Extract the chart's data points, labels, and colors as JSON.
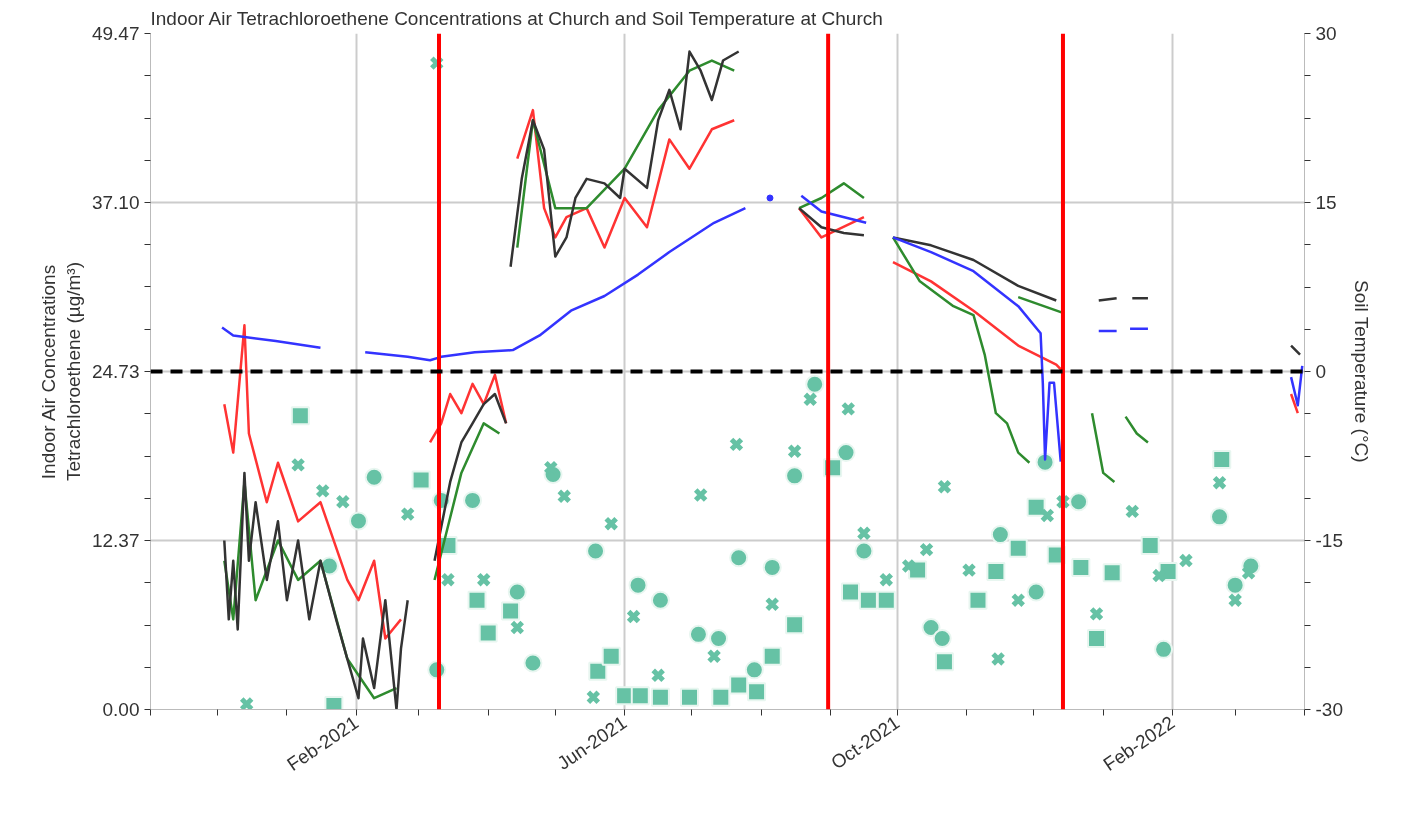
{
  "chart_data": {
    "type": "line",
    "title": "Indoor Air Tetrachloroethene Concentrations at Church and Soil Temperature at Church",
    "ylabel": "Indoor Air Concentrations\nTetrachloroethene (µg/m³)",
    "y2label": "Soil Temperature (°C)",
    "xlim": [
      "2020-11-01",
      "2022-04-01"
    ],
    "xticks": [
      {
        "value": "2020-11-01",
        "label": null
      },
      {
        "value": "2020-12-01",
        "label": null
      },
      {
        "value": "2021-01-01",
        "label": null
      },
      {
        "value": "2021-02-01",
        "label": "Feb-2021"
      },
      {
        "value": "2021-03-01",
        "label": null
      },
      {
        "value": "2021-04-01",
        "label": null
      },
      {
        "value": "2021-05-01",
        "label": null
      },
      {
        "value": "2021-06-01",
        "label": "Jun-2021"
      },
      {
        "value": "2021-07-01",
        "label": null
      },
      {
        "value": "2021-08-01",
        "label": null
      },
      {
        "value": "2021-09-01",
        "label": null
      },
      {
        "value": "2021-10-01",
        "label": "Oct-2021"
      },
      {
        "value": "2021-11-01",
        "label": null
      },
      {
        "value": "2021-12-01",
        "label": null
      },
      {
        "value": "2022-01-01",
        "label": null
      },
      {
        "value": "2022-02-01",
        "label": "Feb-2022"
      },
      {
        "value": "2022-03-01",
        "label": null
      },
      {
        "value": "2022-04-01",
        "label": null
      }
    ],
    "ylim": [
      0,
      49.47
    ],
    "yticks": [
      {
        "value": 0,
        "label": "0.00"
      },
      {
        "value": 3.09,
        "label": null
      },
      {
        "value": 6.18,
        "label": null
      },
      {
        "value": 9.28,
        "label": null
      },
      {
        "value": 12.37,
        "label": "12.37"
      },
      {
        "value": 15.46,
        "label": null
      },
      {
        "value": 18.55,
        "label": null
      },
      {
        "value": 21.64,
        "label": null
      },
      {
        "value": 24.73,
        "label": "24.73"
      },
      {
        "value": 27.83,
        "label": null
      },
      {
        "value": 30.92,
        "label": null
      },
      {
        "value": 34.01,
        "label": null
      },
      {
        "value": 37.1,
        "label": "37.10"
      },
      {
        "value": 40.19,
        "label": null
      },
      {
        "value": 43.28,
        "label": null
      },
      {
        "value": 46.38,
        "label": null
      },
      {
        "value": 49.47,
        "label": "49.47"
      }
    ],
    "y2lim": [
      -30,
      30
    ],
    "y2ticks": [
      -30,
      {
        "value": -26.25,
        "label": null
      },
      {
        "value": -22.5,
        "label": null
      },
      {
        "value": -18.75,
        "label": null
      },
      -15,
      {
        "value": -11.25,
        "label": null
      },
      {
        "value": -7.5,
        "label": null
      },
      {
        "value": -3.75,
        "label": null
      },
      0,
      {
        "value": 3.75,
        "label": null
      },
      {
        "value": 7.5,
        "label": null
      },
      {
        "value": 11.25,
        "label": null
      },
      15,
      {
        "value": 18.75,
        "label": null
      },
      {
        "value": 22.5,
        "label": null
      },
      {
        "value": 26.25,
        "label": null
      },
      30
    ],
    "grid": true,
    "ref_lines": [
      {
        "axis": "x",
        "value": "2021-03-10",
        "color": "#ff0000"
      },
      {
        "axis": "x",
        "value": "2021-08-31",
        "color": "#ff0000"
      },
      {
        "axis": "x",
        "value": "2021-12-14",
        "color": "#ff0000"
      },
      {
        "axis": "y2",
        "value": 0,
        "color": "#000000",
        "line_style": "dashed"
      }
    ],
    "series": [
      {
        "type": "scatter",
        "marker": "circle",
        "color": "#66c2a5",
        "x": [
          "2021-01-20",
          "2021-02-02",
          "2021-02-09",
          "2021-03-09",
          "2021-03-11",
          "2021-03-25",
          "2021-04-14",
          "2021-04-21",
          "2021-04-30",
          "2021-05-19",
          "2021-06-07",
          "2021-06-17",
          "2021-07-04",
          "2021-07-13",
          "2021-07-22",
          "2021-07-29",
          "2021-08-06",
          "2021-08-16",
          "2021-08-25",
          "2021-09-08",
          "2021-09-16",
          "2021-10-16",
          "2021-10-21",
          "2021-11-16",
          "2021-12-02",
          "2021-12-06",
          "2021-12-21",
          "2022-01-28",
          "2022-02-22",
          "2022-03-01",
          "2022-03-08"
        ],
        "values": [
          10.5,
          13.8,
          17.0,
          2.9,
          15.3,
          15.3,
          8.6,
          3.4,
          17.2,
          11.6,
          9.1,
          8.0,
          5.5,
          5.2,
          11.1,
          2.9,
          10.4,
          17.1,
          23.8,
          18.8,
          11.6,
          6.0,
          5.2,
          12.8,
          8.6,
          18.1,
          15.2,
          4.4,
          14.1,
          9.1,
          10.5
        ]
      },
      {
        "type": "scatter",
        "marker": "square",
        "color": "#66c2a5",
        "x": [
          "2021-01-07",
          "2021-01-22",
          "2021-03-02",
          "2021-03-14",
          "2021-03-27",
          "2021-04-01",
          "2021-04-11",
          "2021-05-20",
          "2021-05-26",
          "2021-06-01",
          "2021-06-08",
          "2021-06-17",
          "2021-06-30",
          "2021-07-14",
          "2021-07-22",
          "2021-07-30",
          "2021-08-06",
          "2021-08-16",
          "2021-09-02",
          "2021-09-10",
          "2021-09-18",
          "2021-09-26",
          "2021-10-10",
          "2021-10-22",
          "2021-11-06",
          "2021-11-14",
          "2021-11-24",
          "2021-12-02",
          "2021-12-11",
          "2021-12-22",
          "2021-12-29",
          "2022-01-05",
          "2022-01-22",
          "2022-01-30",
          "2022-02-23"
        ],
        "values": [
          21.5,
          0.3,
          16.8,
          12.0,
          8.0,
          5.6,
          7.2,
          2.8,
          3.9,
          1.0,
          1.0,
          0.9,
          0.9,
          0.9,
          1.8,
          1.3,
          3.9,
          6.2,
          17.7,
          8.6,
          8.0,
          8.0,
          10.2,
          3.5,
          8.0,
          10.1,
          11.8,
          14.8,
          11.3,
          10.4,
          5.2,
          10.0,
          12.0,
          10.1,
          18.3
        ]
      },
      {
        "type": "scatter",
        "marker": "cross",
        "color": "#66c2a5",
        "x": [
          "2020-12-14",
          "2021-01-06",
          "2021-01-17",
          "2021-01-26",
          "2021-02-24",
          "2021-03-09",
          "2021-03-14",
          "2021-03-30",
          "2021-04-14",
          "2021-04-29",
          "2021-05-05",
          "2021-05-18",
          "2021-05-26",
          "2021-06-05",
          "2021-06-16",
          "2021-07-05",
          "2021-07-11",
          "2021-07-21",
          "2021-08-06",
          "2021-08-16",
          "2021-08-23",
          "2021-09-09",
          "2021-09-16",
          "2021-09-26",
          "2021-10-06",
          "2021-10-14",
          "2021-10-22",
          "2021-11-02",
          "2021-11-15",
          "2021-11-24",
          "2021-12-07",
          "2021-12-14",
          "2021-12-29",
          "2022-01-14",
          "2022-01-26",
          "2022-02-07",
          "2022-02-22",
          "2022-03-01",
          "2022-03-07"
        ],
        "values": [
          0.4,
          17.9,
          16.0,
          15.2,
          14.3,
          47.3,
          9.5,
          9.5,
          6.0,
          17.7,
          15.6,
          0.9,
          13.6,
          6.8,
          2.5,
          15.7,
          3.9,
          19.4,
          7.7,
          18.9,
          22.7,
          22.0,
          12.9,
          9.5,
          10.5,
          11.7,
          16.3,
          10.2,
          3.7,
          8.0,
          14.2,
          15.2,
          7.0,
          14.5,
          9.8,
          10.9,
          16.6,
          8.0,
          10.0
        ]
      },
      {
        "axis": "y2",
        "color": "#ff3333",
        "x": [
          "2020-12-04",
          "2020-12-08",
          "2020-12-13",
          "2020-12-15",
          "2020-12-23",
          "2020-12-28",
          "2021-01-06",
          "2021-01-16",
          "2021-01-28",
          "2021-02-02",
          "2021-02-09",
          "2021-02-14",
          "2021-02-21",
          "2021-03-01",
          "2021-03-06",
          "2021-03-11",
          "2021-03-15",
          "2021-03-20",
          "2021-03-25",
          "2021-03-30",
          "2021-04-04",
          "2021-04-09",
          "2021-04-10",
          "2021-04-14",
          "2021-04-21",
          "2021-04-26",
          "2021-05-01",
          "2021-05-06",
          "2021-05-15",
          "2021-05-23",
          "2021-06-01",
          "2021-06-11",
          "2021-06-21",
          "2021-06-30",
          "2021-07-10",
          "2021-07-20",
          "2021-07-30",
          "2021-08-18",
          "2021-08-28",
          "2021-09-16",
          "2021-09-23",
          "2021-09-29",
          "2021-10-16",
          "2021-11-04",
          "2021-11-24",
          "2021-12-11",
          "2021-12-14",
          "2021-12-18",
          "2022-03-26",
          "2022-03-29"
        ],
        "values": [
          -2.9,
          -7.2,
          4.1,
          -5.5,
          -11.6,
          -8.1,
          -13.3,
          -11.6,
          -18.5,
          -20.3,
          -16.8,
          -23.7,
          -22.0,
          null,
          -6.3,
          -4.6,
          -2.0,
          -3.7,
          -1.1,
          -2.9,
          -0.3,
          -4.6,
          null,
          18.9,
          23.2,
          14.5,
          11.9,
          13.7,
          14.5,
          11.0,
          15.4,
          12.8,
          20.6,
          18.0,
          21.5,
          22.3,
          null,
          14.5,
          11.9,
          13.7,
          null,
          9.7,
          8.0,
          5.4,
          2.3,
          0.6,
          0.0,
          null,
          -2.0,
          -3.7
        ]
      },
      {
        "axis": "y2",
        "color": "#2e8b2e",
        "x": [
          "2020-12-04",
          "2020-12-08",
          "2020-12-13",
          "2020-12-18",
          "2020-12-28",
          "2021-01-06",
          "2021-01-16",
          "2021-01-28",
          "2021-02-09",
          "2021-02-19",
          "2021-03-01",
          "2021-03-08",
          "2021-03-20",
          "2021-03-30",
          "2021-04-06",
          "2021-04-10",
          "2021-04-14",
          "2021-04-21",
          "2021-05-01",
          "2021-05-15",
          "2021-06-01",
          "2021-06-16",
          "2021-06-30",
          "2021-07-10",
          "2021-07-20",
          "2021-07-30",
          "2021-08-18",
          "2021-08-28",
          "2021-09-07",
          "2021-09-16",
          "2021-09-23",
          "2021-09-29",
          "2021-10-11",
          "2021-10-26",
          "2021-11-04",
          "2021-11-09",
          "2021-11-14",
          "2021-11-19",
          "2021-11-24",
          "2021-11-29",
          "2021-12-04",
          "2021-12-27",
          "2022-01-01",
          "2022-01-06",
          "2022-01-08",
          "2022-01-11",
          "2022-01-16",
          "2022-01-21"
        ],
        "values": [
          -16.8,
          -22.0,
          -9.8,
          -20.3,
          -15.0,
          -18.5,
          -16.8,
          -25.5,
          -29.0,
          -28.1,
          null,
          -18.5,
          -9.0,
          -4.6,
          -5.5,
          null,
          11.0,
          22.3,
          14.5,
          14.5,
          18.0,
          23.2,
          26.7,
          27.6,
          26.7,
          null,
          14.5,
          15.4,
          16.7,
          15.4,
          null,
          11.9,
          8.0,
          5.8,
          5.0,
          1.5,
          -3.7,
          -4.6,
          -7.2,
          -8.1,
          null,
          -3.7,
          -9.0,
          -9.8,
          null,
          -4.0,
          -5.5,
          -6.3
        ]
      },
      {
        "axis": "y2",
        "color": "#2e8b2e",
        "x": [
          "2021-11-24",
          "2021-12-14"
        ],
        "values": [
          6.6,
          5.2
        ]
      },
      {
        "axis": "y2",
        "color": "#333333",
        "x": [
          "2020-12-04",
          "2020-12-06",
          "2020-12-08",
          "2020-12-10",
          "2020-12-13",
          "2020-12-15",
          "2020-12-18",
          "2020-12-23",
          "2020-12-28",
          "2021-01-01",
          "2021-01-06",
          "2021-01-11",
          "2021-01-16",
          "2021-01-23",
          "2021-01-28",
          "2021-02-02",
          "2021-02-04",
          "2021-02-09",
          "2021-02-14",
          "2021-02-19",
          "2021-02-21",
          "2021-02-24",
          "2021-03-01",
          "2021-03-08",
          "2021-03-15",
          "2021-03-20",
          "2021-03-25",
          "2021-03-30",
          "2021-04-04",
          "2021-04-09",
          "2021-04-10",
          "2021-04-11",
          "2021-04-16",
          "2021-04-21",
          "2021-04-26",
          "2021-05-01",
          "2021-05-06",
          "2021-05-10",
          "2021-05-15",
          "2021-05-23",
          "2021-05-30",
          "2021-06-01",
          "2021-06-11",
          "2021-06-16",
          "2021-06-21",
          "2021-06-26",
          "2021-06-30",
          "2021-07-05",
          "2021-07-10",
          "2021-07-15",
          "2021-07-22",
          "2021-07-30",
          "2021-08-18",
          "2021-08-28",
          "2021-09-07",
          "2021-09-16",
          "2021-09-23",
          "2021-09-29",
          "2021-10-16",
          "2021-11-04",
          "2021-11-24",
          "2021-12-11",
          "2021-12-18",
          "2021-12-30",
          "2022-01-07",
          "2022-01-10",
          "2022-01-14",
          "2022-01-21",
          "2022-02-19",
          "2022-03-26",
          "2022-03-30"
        ],
        "values": [
          -15.0,
          -22.0,
          -16.8,
          -22.9,
          -9.0,
          -16.8,
          -11.6,
          -18.5,
          -13.3,
          -20.3,
          -15.0,
          -22.0,
          -16.8,
          -22.0,
          -25.5,
          -29.0,
          -23.7,
          -28.1,
          -20.3,
          -30,
          -24.6,
          -20.3,
          null,
          -16.8,
          -9.8,
          -6.3,
          -4.6,
          -2.9,
          -2.0,
          -4.6,
          null,
          9.3,
          17.1,
          22.3,
          19.7,
          10.2,
          11.9,
          15.4,
          17.1,
          16.7,
          15.4,
          18.0,
          16.3,
          22.3,
          25.0,
          21.5,
          28.4,
          26.7,
          24.1,
          27.6,
          28.4,
          null,
          14.5,
          12.8,
          12.3,
          12.1,
          null,
          11.9,
          11.2,
          9.9,
          7.6,
          6.3,
          null,
          6.3,
          6.5,
          null,
          6.5,
          6.5,
          null,
          2.3,
          1.5
        ]
      },
      {
        "axis": "y2",
        "color": "#3333ff",
        "x": [
          "2020-12-03",
          "2020-12-08",
          "2020-12-27",
          "2021-01-16",
          "2021-01-24",
          "2021-02-05",
          "2021-02-24",
          "2021-03-06",
          "2021-03-11",
          "2021-03-26",
          "2021-04-12",
          "2021-04-24",
          "2021-05-08",
          "2021-05-23",
          "2021-06-07",
          "2021-06-21",
          "2021-07-11",
          "2021-07-25",
          "2021-07-30",
          "2021-08-05",
          "2021-08-11",
          "2021-08-19",
          "2021-08-28",
          "2021-09-17",
          "2021-09-23",
          "2021-09-29",
          "2021-10-16",
          "2021-11-04",
          "2021-11-24",
          "2021-12-04",
          "2021-12-05",
          "2021-12-06",
          "2021-12-08",
          "2021-12-10",
          "2021-12-13",
          "2021-12-20",
          "2021-12-30",
          "2022-01-07",
          "2022-01-10",
          "2022-01-13",
          "2022-01-21",
          "2022-02-19",
          "2022-03-26",
          "2022-03-29",
          "2022-03-31"
        ],
        "values": [
          3.9,
          3.2,
          2.7,
          2.1,
          null,
          1.7,
          1.3,
          1.0,
          1.3,
          1.7,
          1.9,
          3.2,
          5.4,
          6.7,
          8.6,
          10.6,
          13.2,
          14.5,
          null,
          15.4,
          null,
          15.6,
          14.2,
          13.2,
          null,
          11.9,
          10.6,
          8.9,
          5.8,
          3.4,
          -1.1,
          -7.8,
          -1.0,
          -1.0,
          -8.0,
          null,
          3.6,
          3.6,
          null,
          3.8,
          3.8,
          null,
          -0.5,
          -3.0,
          0.5
        ]
      }
    ]
  }
}
